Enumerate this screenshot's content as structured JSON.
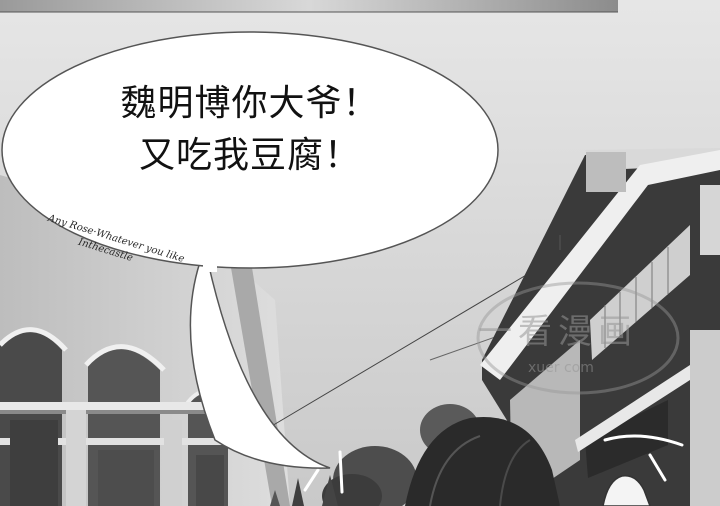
{
  "speech_bubble": {
    "lines": [
      "魏明博你大爷！",
      "又吃我豆腐！"
    ]
  },
  "building_sign": {
    "line1": "Any Rose·Whatever you like",
    "line2": "Inthecastle"
  },
  "watermark": {
    "text": "一看漫画",
    "url": "xuer   com"
  },
  "colors": {
    "sky": "#dcdcdc",
    "building_light": "#cfcfcf",
    "building_dark": "#3a3a3a",
    "bubble_fill": "#ffffff",
    "text": "#111111"
  }
}
